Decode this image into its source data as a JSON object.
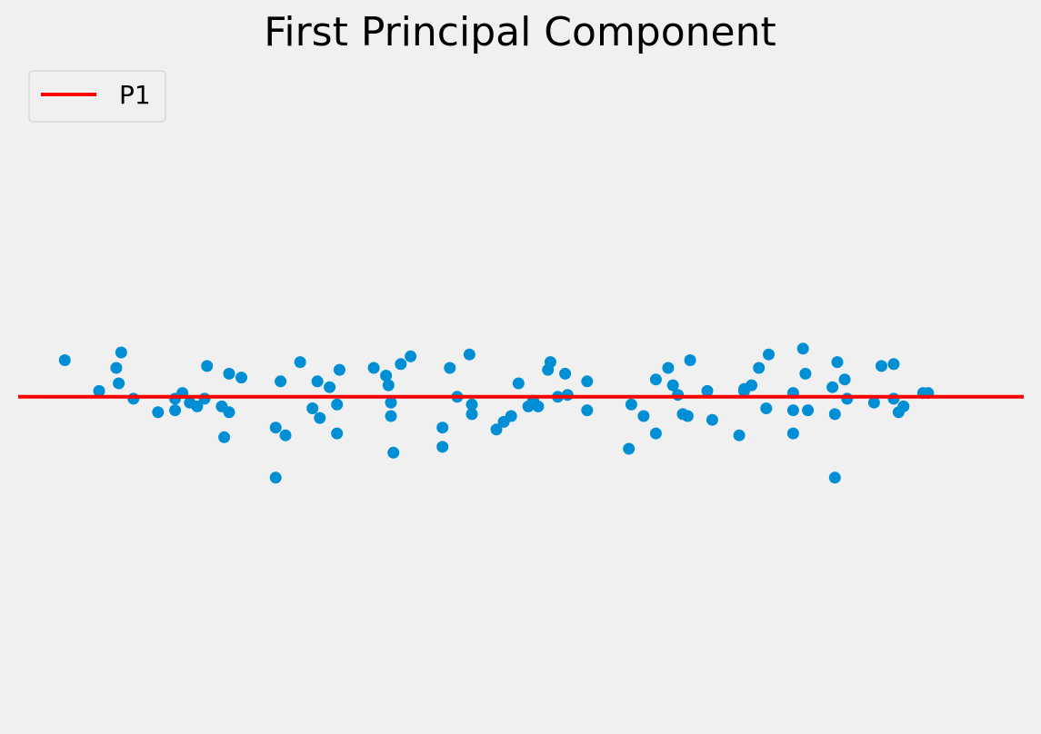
{
  "chart_data": {
    "type": "scatter",
    "title": "First Principal Component",
    "xlabel": "",
    "ylabel": "",
    "xlim": [
      -2.05,
      2.05
    ],
    "ylim": [
      -1.6,
      1.4
    ],
    "grid": false,
    "axes_visible": false,
    "legend": {
      "placement": "top-left",
      "entries": [
        {
          "label": "P1",
          "color": "#ff0000"
        }
      ]
    },
    "series": [
      {
        "kind": "points",
        "color": "#008fd5",
        "points": [
          [
            -1.86,
            0.19
          ],
          [
            -1.72,
            0.03
          ],
          [
            -1.65,
            0.15
          ],
          [
            -1.64,
            0.07
          ],
          [
            -1.63,
            0.23
          ],
          [
            -1.58,
            -0.01
          ],
          [
            -1.48,
            -0.08
          ],
          [
            -1.41,
            -0.07
          ],
          [
            -1.41,
            -0.01
          ],
          [
            -1.38,
            0.02
          ],
          [
            -1.35,
            -0.03
          ],
          [
            -1.32,
            -0.05
          ],
          [
            -1.29,
            -0.01
          ],
          [
            -1.28,
            0.16
          ],
          [
            -1.22,
            -0.05
          ],
          [
            -1.21,
            -0.21
          ],
          [
            -1.19,
            -0.08
          ],
          [
            -1.19,
            0.12
          ],
          [
            -1.14,
            0.1
          ],
          [
            -1.0,
            -0.16
          ],
          [
            -1.0,
            -0.42
          ],
          [
            -0.98,
            0.08
          ],
          [
            -0.96,
            -0.2
          ],
          [
            -0.9,
            0.18
          ],
          [
            -0.85,
            -0.06
          ],
          [
            -0.83,
            0.08
          ],
          [
            -0.82,
            -0.11
          ],
          [
            -0.78,
            0.05
          ],
          [
            -0.75,
            -0.04
          ],
          [
            -0.75,
            -0.19
          ],
          [
            -0.74,
            0.14
          ],
          [
            -0.6,
            0.15
          ],
          [
            -0.55,
            0.11
          ],
          [
            -0.54,
            0.06
          ],
          [
            -0.53,
            -0.03
          ],
          [
            -0.53,
            -0.1
          ],
          [
            -0.52,
            -0.29
          ],
          [
            -0.49,
            0.17
          ],
          [
            -0.45,
            0.21
          ],
          [
            -0.32,
            -0.16
          ],
          [
            -0.32,
            -0.26
          ],
          [
            -0.29,
            0.15
          ],
          [
            -0.26,
            0.0
          ],
          [
            -0.21,
            0.22
          ],
          [
            -0.2,
            -0.09
          ],
          [
            -0.2,
            -0.04
          ],
          [
            -0.1,
            -0.17
          ],
          [
            -0.07,
            -0.13
          ],
          [
            -0.04,
            -0.1
          ],
          [
            -0.01,
            0.07
          ],
          [
            0.03,
            -0.05
          ],
          [
            0.05,
            -0.02
          ],
          [
            0.07,
            -0.05
          ],
          [
            0.11,
            0.14
          ],
          [
            0.12,
            0.18
          ],
          [
            0.15,
            0.0
          ],
          [
            0.18,
            0.12
          ],
          [
            0.19,
            0.01
          ],
          [
            0.27,
            -0.07
          ],
          [
            0.27,
            0.08
          ],
          [
            0.44,
            -0.27
          ],
          [
            0.45,
            -0.04
          ],
          [
            0.5,
            -0.1
          ],
          [
            0.55,
            0.09
          ],
          [
            0.55,
            -0.19
          ],
          [
            0.6,
            0.15
          ],
          [
            0.62,
            0.06
          ],
          [
            0.64,
            0.01
          ],
          [
            0.66,
            -0.09
          ],
          [
            0.68,
            -0.1
          ],
          [
            0.69,
            0.19
          ],
          [
            0.76,
            0.03
          ],
          [
            0.78,
            -0.12
          ],
          [
            0.89,
            -0.2
          ],
          [
            0.91,
            0.03
          ],
          [
            0.91,
            0.04
          ],
          [
            0.94,
            0.06
          ],
          [
            0.97,
            0.15
          ],
          [
            1.0,
            -0.06
          ],
          [
            1.01,
            0.22
          ],
          [
            1.11,
            0.02
          ],
          [
            1.11,
            -0.07
          ],
          [
            1.11,
            -0.19
          ],
          [
            1.15,
            0.25
          ],
          [
            1.16,
            0.12
          ],
          [
            1.17,
            -0.07
          ],
          [
            1.27,
            0.05
          ],
          [
            1.28,
            -0.09
          ],
          [
            1.28,
            -0.42
          ],
          [
            1.29,
            0.18
          ],
          [
            1.32,
            0.09
          ],
          [
            1.33,
            -0.01
          ],
          [
            1.44,
            -0.03
          ],
          [
            1.47,
            0.16
          ],
          [
            1.52,
            0.17
          ],
          [
            1.52,
            -0.01
          ],
          [
            1.54,
            -0.08
          ],
          [
            1.56,
            -0.05
          ],
          [
            1.64,
            0.02
          ],
          [
            1.66,
            0.02
          ]
        ]
      },
      {
        "name": "P1",
        "kind": "line",
        "color": "#ff0000",
        "x": [
          -2.05,
          2.05
        ],
        "y": [
          0.0,
          0.0
        ]
      }
    ]
  }
}
